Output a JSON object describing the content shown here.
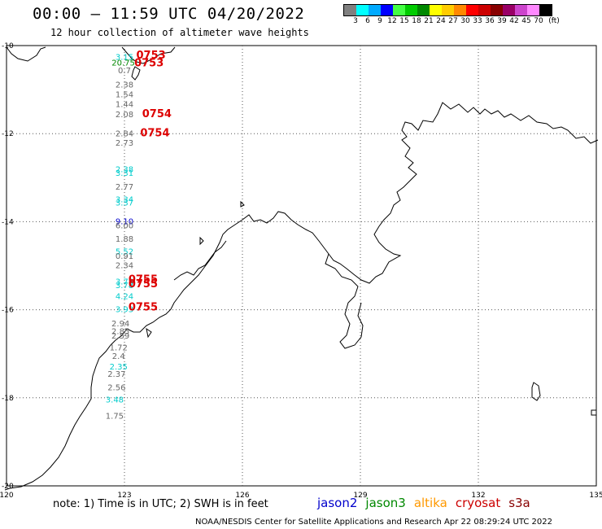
{
  "header": {
    "title": "00:00 – 11:59 UTC 04/20/2022",
    "subtitle": "12 hour collection of altimeter wave heights"
  },
  "legend": {
    "colors": [
      "#808080",
      "#00ffff",
      "#00aaff",
      "#0000ff",
      "#44ff44",
      "#00cc00",
      "#008800",
      "#ffff00",
      "#ffcc00",
      "#ff8800",
      "#ff0000",
      "#cc0000",
      "#880000",
      "#990066",
      "#cc44cc",
      "#ff88ff",
      "#000000"
    ],
    "labels": [
      "3",
      "6",
      "9",
      "12",
      "15",
      "18",
      "21",
      "24",
      "27",
      "30",
      "33",
      "36",
      "39",
      "42",
      "45",
      "70",
      "(ft)"
    ]
  },
  "axes": {
    "lon_labels": [
      "120",
      "123",
      "126",
      "129",
      "132",
      "135"
    ],
    "lat_labels": [
      "-10",
      "-12",
      "-14",
      "-16",
      "-18",
      "-20"
    ]
  },
  "map": {
    "lon_range": [
      120,
      135
    ],
    "lat_range": [
      -20,
      -10
    ],
    "coast_color": "#000000"
  },
  "observations": [
    {
      "text": "3.15",
      "color": "#00cccc",
      "lon": 123.0,
      "lat": -10.25
    },
    {
      "text": "20.75",
      "color": "#008800",
      "lon": 122.97,
      "lat": -10.38
    },
    {
      "text": "0.7",
      "color": "#666666",
      "lon": 123.0,
      "lat": -10.55
    },
    {
      "text": "2.38",
      "color": "#666666",
      "lon": 123.0,
      "lat": -10.88
    },
    {
      "text": "1.54",
      "color": "#666666",
      "lon": 123.0,
      "lat": -11.1
    },
    {
      "text": "1.44",
      "color": "#666666",
      "lon": 123.0,
      "lat": -11.32
    },
    {
      "text": "2.08",
      "color": "#666666",
      "lon": 123.0,
      "lat": -11.55
    },
    {
      "text": "2.84",
      "color": "#666666",
      "lon": 123.0,
      "lat": -11.99
    },
    {
      "text": "2.73",
      "color": "#666666",
      "lon": 123.0,
      "lat": -12.2
    },
    {
      "text": "2.38",
      "color": "#00cccc",
      "lon": 123.0,
      "lat": -12.8
    },
    {
      "text": "3.31",
      "color": "#00cccc",
      "lon": 123.0,
      "lat": -12.88
    },
    {
      "text": "2.77",
      "color": "#666666",
      "lon": 123.0,
      "lat": -13.2
    },
    {
      "text": "3.34",
      "color": "#00cccc",
      "lon": 123.0,
      "lat": -13.48
    },
    {
      "text": "3.37",
      "color": "#00cccc",
      "lon": 123.0,
      "lat": -13.56
    },
    {
      "text": "9.10",
      "color": "#0000cc",
      "lon": 123.0,
      "lat": -13.98
    },
    {
      "text": "6.00",
      "color": "#666666",
      "lon": 123.0,
      "lat": -14.08
    },
    {
      "text": "1.88",
      "color": "#666666",
      "lon": 123.0,
      "lat": -14.38
    },
    {
      "text": "5.52",
      "color": "#00cccc",
      "lon": 123.0,
      "lat": -14.67
    },
    {
      "text": "0.91",
      "color": "#666666",
      "lon": 123.0,
      "lat": -14.77
    },
    {
      "text": "2.34",
      "color": "#666666",
      "lon": 123.0,
      "lat": -14.98
    },
    {
      "text": "3.78",
      "color": "#00cccc",
      "lon": 123.0,
      "lat": -15.35
    },
    {
      "text": "3.78",
      "color": "#00cccc",
      "lon": 123.0,
      "lat": -15.43
    },
    {
      "text": "4.24",
      "color": "#00cccc",
      "lon": 123.0,
      "lat": -15.68
    },
    {
      "text": "3.93",
      "color": "#00cccc",
      "lon": 123.0,
      "lat": -15.98
    },
    {
      "text": "2.94",
      "color": "#666666",
      "lon": 122.9,
      "lat": -16.3
    },
    {
      "text": "2.85",
      "color": "#666666",
      "lon": 122.9,
      "lat": -16.48
    },
    {
      "text": "2.59",
      "color": "#666666",
      "lon": 122.9,
      "lat": -16.58
    },
    {
      "text": "1.72",
      "color": "#666666",
      "lon": 122.85,
      "lat": -16.85
    },
    {
      "text": "2.4",
      "color": "#666666",
      "lon": 122.85,
      "lat": -17.04
    },
    {
      "text": "2.35",
      "color": "#00cccc",
      "lon": 122.85,
      "lat": -17.28
    },
    {
      "text": "2.37",
      "color": "#666666",
      "lon": 122.8,
      "lat": -17.45
    },
    {
      "text": "2.56",
      "color": "#666666",
      "lon": 122.8,
      "lat": -17.75
    },
    {
      "text": "3.48",
      "color": "#00cccc",
      "lon": 122.75,
      "lat": -18.03
    },
    {
      "text": "1.75",
      "color": "#666666",
      "lon": 122.75,
      "lat": -18.4
    }
  ],
  "pass_times": [
    {
      "text": "0753",
      "color": "#dd0000",
      "lon": 123.3,
      "lat": -10.2
    },
    {
      "text": "0753",
      "color": "#dd0000",
      "lon": 123.25,
      "lat": -10.38
    },
    {
      "text": "0754",
      "color": "#dd0000",
      "lon": 123.45,
      "lat": -11.53
    },
    {
      "text": "0754",
      "color": "#dd0000",
      "lon": 123.4,
      "lat": -11.97
    },
    {
      "text": "0755",
      "color": "#dd0000",
      "lon": 123.1,
      "lat": -15.3
    },
    {
      "text": "0755",
      "color": "#dd0000",
      "lon": 123.1,
      "lat": -15.4
    },
    {
      "text": "0755",
      "color": "#dd0000",
      "lon": 123.1,
      "lat": -15.92
    }
  ],
  "note": "note: 1) Time is in UTC; 2) SWH is in feet",
  "satellites": [
    {
      "name": "jason2",
      "color": "#0000cc"
    },
    {
      "name": "jason3",
      "color": "#008800"
    },
    {
      "name": "altika",
      "color": "#ff9900"
    },
    {
      "name": "cryosat",
      "color": "#cc0000"
    },
    {
      "name": "s3a",
      "color": "#880000"
    }
  ],
  "footer": "NOAA/NESDIS Center for Satellite Applications and Research    Apr 22 08:29:24 UTC 2022"
}
